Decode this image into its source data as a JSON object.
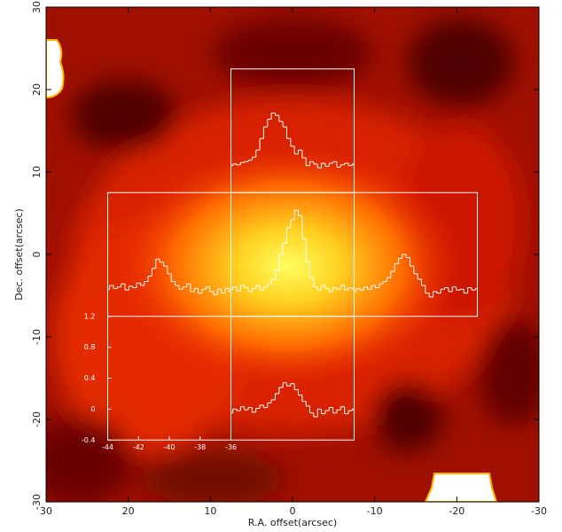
{
  "chart_data": {
    "type": "spectral-map",
    "xlabel": "R.A. offset(arcsec)",
    "ylabel": "Dec. offset(arcsec)",
    "xlim": [
      30,
      -30
    ],
    "xticks": [
      30,
      20,
      10,
      0,
      -10,
      -20,
      -30
    ],
    "ylim": [
      -30,
      30
    ],
    "yticks": [
      -30,
      -20,
      -10,
      0,
      10,
      20,
      30
    ],
    "spectrum_color": "#ffffff",
    "inset_xlim": [
      -44,
      -36
    ],
    "inset_xticks": [
      -44,
      -42,
      -40,
      -38,
      -36
    ],
    "inset_ylim": [
      -0.4,
      1.2
    ],
    "inset_yticks": [
      -0.4,
      0,
      0.4,
      0.8,
      1.2
    ],
    "velocity": [
      -44,
      -43.75,
      -43.5,
      -43.25,
      -43,
      -42.75,
      -42.5,
      -42.25,
      -42,
      -41.75,
      -41.5,
      -41.25,
      -41,
      -40.75,
      -40.5,
      -40.25,
      -40,
      -39.75,
      -39.5,
      -39.25,
      -39,
      -38.75,
      -38.5,
      -38.25,
      -38,
      -37.75,
      -37.5,
      -37.25,
      -37,
      -36.75,
      -36.5,
      -36.25,
      -36
    ],
    "spectra": [
      {
        "values": [
          -0.05,
          -0.03,
          -0.04,
          -0.01,
          0.0,
          0.02,
          0.06,
          0.15,
          0.3,
          0.45,
          0.55,
          0.63,
          0.6,
          0.52,
          0.45,
          0.3,
          0.2,
          0.1,
          0.15,
          0.05,
          -0.05,
          0.0,
          -0.03,
          -0.08,
          -0.02,
          -0.06,
          -0.02,
          0.0,
          -0.07,
          -0.04,
          -0.02,
          -0.05,
          -0.03
        ]
      },
      {
        "values": [
          -0.05,
          0.0,
          -0.04,
          -0.02,
          0.02,
          -0.06,
          -0.01,
          -0.03,
          0.03,
          0.0,
          0.05,
          0.12,
          0.22,
          0.34,
          0.3,
          0.25,
          0.15,
          0.05,
          0.0,
          -0.05,
          -0.02,
          0.02,
          -0.08,
          -0.04,
          -0.1,
          -0.05,
          -0.02,
          -0.08,
          -0.12,
          -0.05,
          -0.1,
          -0.04,
          -0.08
        ]
      },
      {
        "values": [
          -0.05,
          -0.02,
          -0.07,
          0.0,
          -0.03,
          -0.08,
          -0.04,
          0.0,
          -0.06,
          -0.02,
          0.02,
          0.08,
          0.2,
          0.4,
          0.55,
          0.75,
          0.85,
          0.97,
          0.9,
          0.6,
          0.3,
          0.1,
          -0.02,
          -0.06,
          0.0,
          -0.04,
          -0.08,
          -0.03,
          -0.05,
          0.0,
          -0.06,
          -0.03,
          -0.05
        ]
      },
      {
        "values": [
          -0.08,
          -0.04,
          -0.06,
          -0.02,
          -0.05,
          0.0,
          -0.03,
          0.02,
          0.05,
          0.1,
          0.18,
          0.28,
          0.35,
          0.4,
          0.36,
          0.25,
          0.15,
          0.08,
          0.0,
          -0.1,
          -0.15,
          -0.08,
          -0.1,
          -0.05,
          -0.03,
          -0.08,
          -0.02,
          -0.06,
          -0.05,
          -0.1,
          -0.03,
          -0.06,
          -0.04
        ]
      },
      {
        "values": [
          -0.05,
          0.0,
          -0.02,
          0.03,
          -0.01,
          0.02,
          -0.04,
          0.01,
          0.05,
          0.02,
          0.08,
          0.12,
          0.2,
          0.28,
          0.34,
          0.3,
          0.33,
          0.25,
          0.18,
          0.1,
          0.04,
          -0.05,
          -0.1,
          0.0,
          -0.06,
          -0.02,
          0.02,
          -0.05,
          -0.01,
          0.03,
          -0.06,
          -0.02,
          0.0
        ]
      }
    ]
  }
}
